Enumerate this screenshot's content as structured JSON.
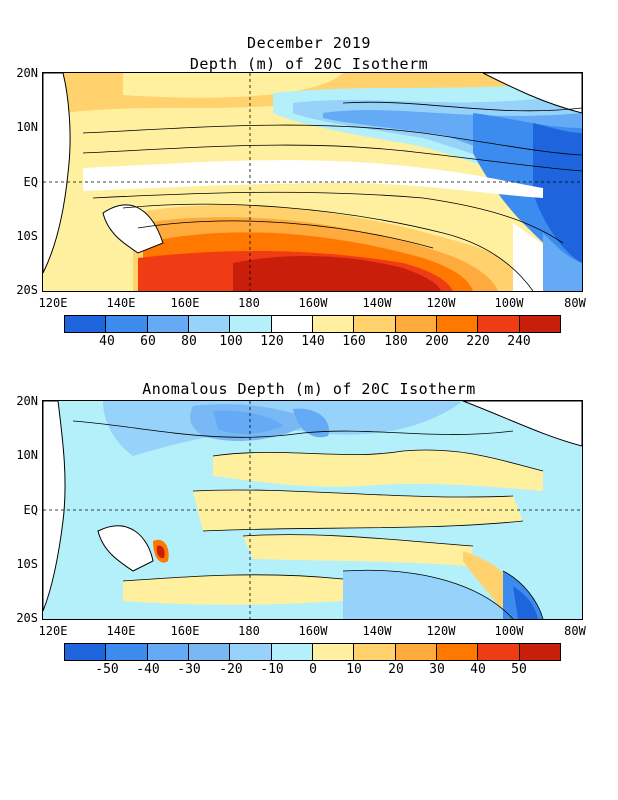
{
  "top": {
    "title_line1": "December 2019",
    "title_line2": "Depth (m) of 20C Isotherm",
    "lat_labels": [
      "20N",
      "10N",
      "EQ",
      "10S",
      "20S"
    ],
    "lon_labels": [
      "120E",
      "140E",
      "160E",
      "180",
      "160W",
      "140W",
      "120W",
      "100W",
      "80W"
    ],
    "colorbar_labels": [
      "40",
      "60",
      "80",
      "100",
      "120",
      "140",
      "160",
      "180",
      "200",
      "220",
      "240"
    ],
    "colorbar_colors": [
      "#1e64dc",
      "#3c8cf0",
      "#64aaf5",
      "#96d2fa",
      "#b4f0fa",
      "#ffffff",
      "#fff0a0",
      "#ffd26e",
      "#ffaa3c",
      "#ff7800",
      "#f03c14",
      "#c81e0a"
    ]
  },
  "bottom": {
    "title": "Anomalous Depth (m) of 20C Isotherm",
    "lat_labels": [
      "20N",
      "10N",
      "EQ",
      "10S",
      "20S"
    ],
    "lon_labels": [
      "120E",
      "140E",
      "160E",
      "180",
      "160W",
      "140W",
      "120W",
      "100W",
      "80W"
    ],
    "colorbar_labels": [
      "-50",
      "-40",
      "-30",
      "-20",
      "-10",
      "0",
      "10",
      "20",
      "30",
      "40",
      "50"
    ],
    "colorbar_colors": [
      "#1e64dc",
      "#3c8cf0",
      "#64aaf5",
      "#78b9f5",
      "#96d2fa",
      "#b4f0fa",
      "#fff0a0",
      "#ffd26e",
      "#ffaa3c",
      "#ff7800",
      "#f03c14",
      "#c81e0a"
    ]
  }
}
